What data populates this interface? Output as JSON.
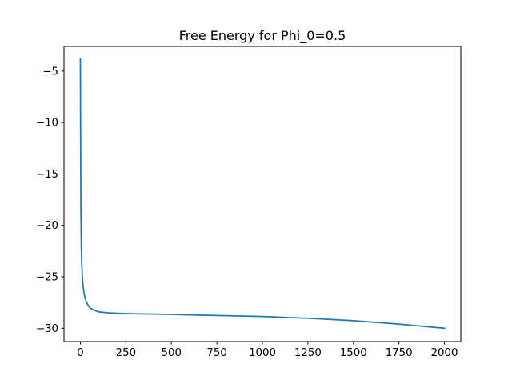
{
  "chart_data": {
    "type": "line",
    "title": "Free Energy for Phi_0=0.5",
    "xlabel": "",
    "ylabel": "",
    "xlim": [
      -90,
      2090
    ],
    "ylim": [
      -31.3,
      -2.6
    ],
    "xticks": [
      0,
      250,
      500,
      750,
      1000,
      1250,
      1500,
      1750,
      2000
    ],
    "xtick_labels": [
      "0",
      "250",
      "500",
      "750",
      "1000",
      "1250",
      "1500",
      "1750",
      "2000"
    ],
    "yticks": [
      -5,
      -10,
      -15,
      -20,
      -25,
      -30
    ],
    "ytick_labels": [
      "−5",
      "−10",
      "−15",
      "−20",
      "−25",
      "−30"
    ],
    "grid": false,
    "legend": "none",
    "colors": {
      "series": "#1f77b4",
      "axes": "#000000",
      "background": "#ffffff"
    },
    "series": [
      {
        "x": [
          0,
          1,
          2,
          3,
          4,
          5,
          6,
          8,
          10,
          12,
          15,
          20,
          25,
          30,
          40,
          50,
          60,
          75,
          100,
          125,
          150,
          200,
          250,
          300,
          400,
          500,
          600,
          750,
          1000,
          1250,
          1500,
          1750,
          2000
        ],
        "values": [
          -3.8,
          -10.0,
          -15.0,
          -18.5,
          -20.6,
          -21.8,
          -22.7,
          -23.9,
          -24.7,
          -25.3,
          -25.9,
          -26.6,
          -27.0,
          -27.3,
          -27.7,
          -27.95,
          -28.1,
          -28.25,
          -28.4,
          -28.45,
          -28.5,
          -28.55,
          -28.58,
          -28.6,
          -28.63,
          -28.66,
          -28.7,
          -28.76,
          -28.86,
          -29.03,
          -29.27,
          -29.6,
          -30.0
        ]
      }
    ]
  }
}
